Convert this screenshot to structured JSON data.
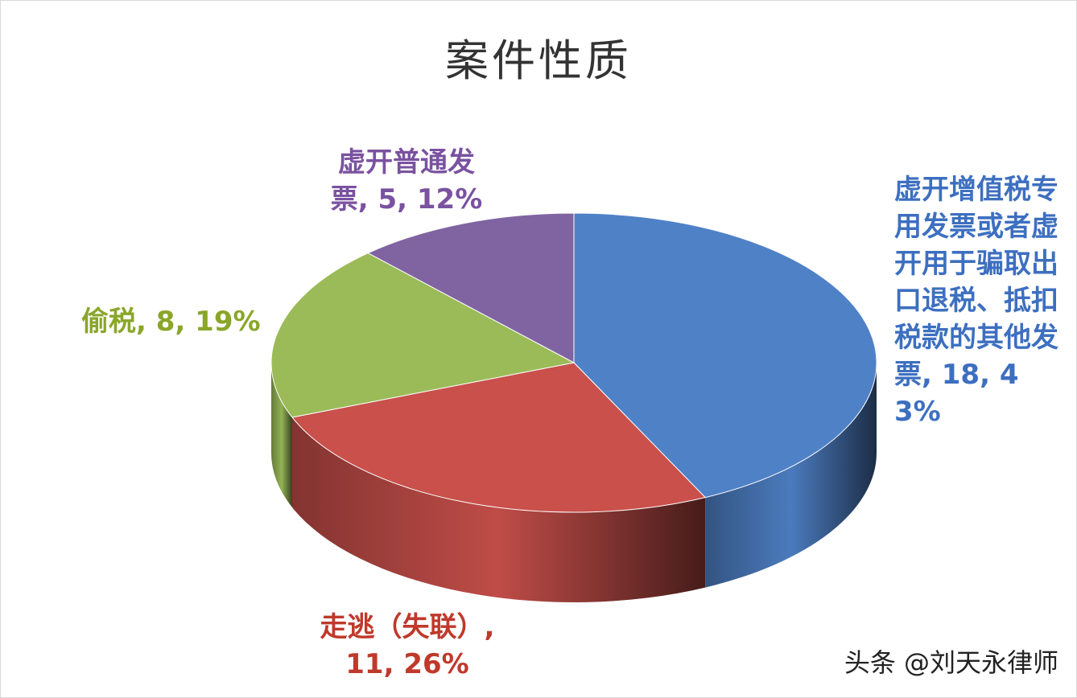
{
  "chart_data": {
    "type": "pie3d",
    "title": "案件性质",
    "values": [
      18,
      11,
      8,
      5
    ],
    "value_labels": [
      "虚开增值税专用发票或者虚开用于骗取出口退税、抵扣税款的其他发票, 18, 43%",
      "走逃（失联）, 11, 26%",
      "偷税, 8, 19%",
      "虚开普通发票, 5, 12%"
    ],
    "colors": [
      "#4f81c7",
      "#c9504b",
      "#9bbb59",
      "#8064a2"
    ],
    "label_colors": [
      "#3d6fc0",
      "#c0392b",
      "#8aa62a",
      "#7a52a0"
    ],
    "start_angle": -90
  },
  "watermark": "头条 @刘天永律师"
}
